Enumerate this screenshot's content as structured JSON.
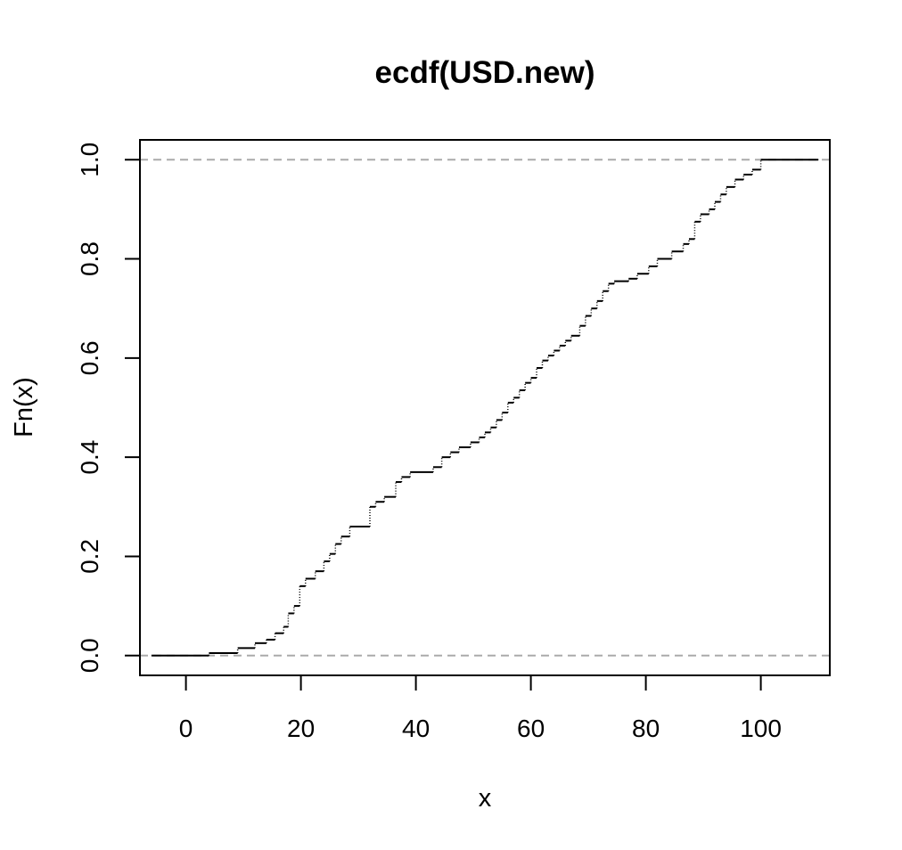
{
  "chart_data": {
    "type": "line",
    "title": "ecdf(USD.new)",
    "xlabel": "x",
    "ylabel": "Fn(x)",
    "xlim": [
      -8,
      112
    ],
    "ylim": [
      -0.04,
      1.04
    ],
    "x_ticks": [
      0,
      20,
      40,
      60,
      80,
      100
    ],
    "y_ticks": [
      0.0,
      0.2,
      0.4,
      0.6,
      0.8,
      1.0
    ],
    "x_tick_labels": [
      "0",
      "20",
      "40",
      "60",
      "80",
      "100"
    ],
    "y_tick_labels": [
      "0.0",
      "0.2",
      "0.4",
      "0.6",
      "0.8",
      "1.0"
    ],
    "reference_lines": [
      0,
      1
    ],
    "reference_line_color": "#aaaaaa",
    "step_color": "#000000",
    "grid": false,
    "series": [
      {
        "x": [
          -6,
          4,
          9,
          12,
          14,
          15.5,
          17,
          17.8,
          18.8,
          19.8,
          20.8,
          22.5,
          24,
          25,
          26,
          27,
          28.5,
          32,
          33,
          34.5,
          36.5,
          37.5,
          39,
          43,
          44.5,
          46,
          47.5,
          49.5,
          51,
          52,
          53,
          54,
          55,
          56,
          57,
          58,
          59,
          60,
          61,
          62,
          63,
          64,
          65,
          66,
          67,
          68.5,
          69.5,
          70.5,
          71.5,
          72.5,
          73.5,
          74.5,
          77,
          78.5,
          80.5,
          82,
          84.5,
          86.5,
          87.5,
          88.5,
          89.5,
          91,
          92,
          93,
          94,
          95.5,
          97,
          98.5,
          100,
          110
        ],
        "y": [
          0.0,
          0.005,
          0.015,
          0.025,
          0.032,
          0.045,
          0.058,
          0.085,
          0.1,
          0.14,
          0.155,
          0.17,
          0.19,
          0.205,
          0.225,
          0.24,
          0.26,
          0.3,
          0.31,
          0.32,
          0.35,
          0.36,
          0.37,
          0.38,
          0.4,
          0.41,
          0.42,
          0.43,
          0.44,
          0.45,
          0.46,
          0.475,
          0.49,
          0.51,
          0.52,
          0.535,
          0.55,
          0.56,
          0.58,
          0.595,
          0.605,
          0.615,
          0.625,
          0.635,
          0.645,
          0.665,
          0.685,
          0.7,
          0.715,
          0.735,
          0.75,
          0.755,
          0.76,
          0.77,
          0.785,
          0.8,
          0.815,
          0.83,
          0.84,
          0.875,
          0.89,
          0.9,
          0.915,
          0.93,
          0.945,
          0.96,
          0.97,
          0.98,
          1.0,
          1.0
        ]
      }
    ]
  }
}
